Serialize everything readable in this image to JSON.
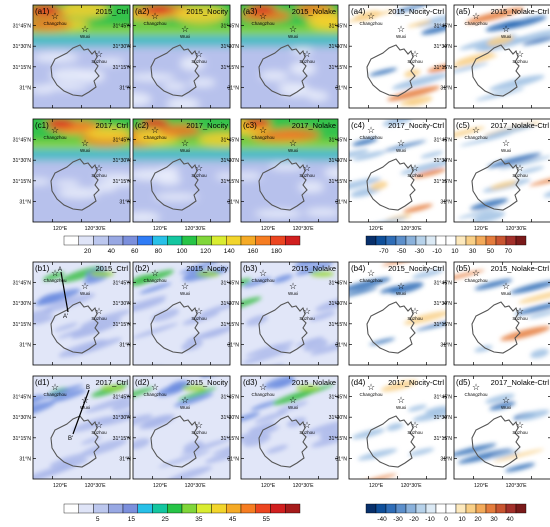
{
  "rows": [
    {
      "panels": [
        {
          "label": "(a1)",
          "title": "2015_Ctrl",
          "scheme": "abs_top"
        },
        {
          "label": "(a2)",
          "title": "2015_Nocity",
          "scheme": "abs_top"
        },
        {
          "label": "(a3)",
          "title": "2015_Nolake",
          "scheme": "abs_top"
        },
        {
          "label": "(a4)",
          "title": "2015_Nocity-Ctrl",
          "scheme": "diff"
        },
        {
          "label": "(a5)",
          "title": "2015_Nolake-Ctrl",
          "scheme": "diff"
        }
      ],
      "show_ylabels": true,
      "show_xlabels": false
    },
    {
      "panels": [
        {
          "label": "(c1)",
          "title": "2017_Ctrl",
          "scheme": "abs_top"
        },
        {
          "label": "(c2)",
          "title": "2017_Nocity",
          "scheme": "abs_top"
        },
        {
          "label": "(c3)",
          "title": "2017_Nolake",
          "scheme": "abs_top"
        },
        {
          "label": "(c4)",
          "title": "2017_Nocity-Ctrl",
          "scheme": "diff"
        },
        {
          "label": "(c5)",
          "title": "2017_Nolake-Ctrl",
          "scheme": "diff"
        }
      ],
      "show_ylabels": true,
      "show_xlabels": true
    },
    {
      "panels": [
        {
          "label": "(b1)",
          "title": "2015_Ctrl",
          "scheme": "abs_bottom",
          "section_line": {
            "start": "A",
            "end": "A'"
          }
        },
        {
          "label": "(b2)",
          "title": "2015_Nocity",
          "scheme": "abs_bottom"
        },
        {
          "label": "(b3)",
          "title": "2015_Nolake",
          "scheme": "abs_bottom"
        },
        {
          "label": "(b4)",
          "title": "2015_Nocity-Ctrl",
          "scheme": "diff_small"
        },
        {
          "label": "(b5)",
          "title": "2015_Nolake-Ctrl",
          "scheme": "diff_small"
        }
      ],
      "show_ylabels": true,
      "show_xlabels": false
    },
    {
      "panels": [
        {
          "label": "(d1)",
          "title": "2017_Ctrl",
          "scheme": "abs_bottom",
          "section_line": {
            "start": "B",
            "end": "B'"
          }
        },
        {
          "label": "(d2)",
          "title": "2015_Nocity",
          "scheme": "abs_bottom"
        },
        {
          "label": "(d3)",
          "title": "2015_Nolake",
          "scheme": "abs_bottom"
        },
        {
          "label": "(d4)",
          "title": "2017_Nocity-Ctrl",
          "scheme": "diff_small"
        },
        {
          "label": "(d5)",
          "title": "2017_Nolake-Ctrl",
          "scheme": "diff_small"
        }
      ],
      "show_ylabels": true,
      "show_xlabels": true
    }
  ],
  "cities": [
    "Changzhou",
    "Wuxi",
    "Suzhou"
  ],
  "y_tick_labels": [
    "31°45'N",
    "31°30'N",
    "31°15'N",
    "31°N"
  ],
  "x_tick_labels": [
    "120°E",
    "120°30'E"
  ],
  "colorbars": {
    "top_abs": {
      "labels": [
        "20",
        "40",
        "60",
        "80",
        "100",
        "120",
        "140",
        "160",
        "180"
      ],
      "colors": [
        "#ffffff",
        "#dfe4f7",
        "#bcc7ee",
        "#98a8e3",
        "#7b8fdc",
        "#2f7cf6",
        "#28c0e8",
        "#14c6a0",
        "#27c447",
        "#80d63a",
        "#d9ec31",
        "#f2d52c",
        "#f5aa26",
        "#f67d22",
        "#ec4520",
        "#d11f1f"
      ]
    },
    "top_diff": {
      "labels": [
        "-70",
        "-50",
        "-30",
        "-10",
        "10",
        "30",
        "50",
        "70"
      ],
      "colors": [
        "#08306b",
        "#0f4f9a",
        "#2f6db7",
        "#5c8fcb",
        "#8ab1db",
        "#b7d2ea",
        "#dceaf5",
        "#ffffff",
        "#ffffff",
        "#fde9bd",
        "#f9cf86",
        "#f3aa5a",
        "#e47c3d",
        "#c95531",
        "#a3302a",
        "#7a1a1a"
      ]
    },
    "bottom_abs": {
      "labels": [
        "5",
        "15",
        "25",
        "35",
        "45",
        "55"
      ],
      "colors": [
        "#ffffff",
        "#dfe4f7",
        "#bcc7ee",
        "#98a8e3",
        "#7b8fdc",
        "#28c0e8",
        "#14c6a0",
        "#27c447",
        "#80d63a",
        "#d9ec31",
        "#f2d52c",
        "#f5aa26",
        "#f67d22",
        "#ec4520",
        "#d11f1f",
        "#a61b1b"
      ]
    },
    "bottom_diff": {
      "labels": [
        "-40",
        "-30",
        "-20",
        "-10",
        "0",
        "10",
        "20",
        "30",
        "40"
      ],
      "colors": [
        "#08306b",
        "#0f4f9a",
        "#2f6db7",
        "#5c8fcb",
        "#8ab1db",
        "#b7d2ea",
        "#dceaf5",
        "#ffffff",
        "#ffffff",
        "#fde9bd",
        "#f9cf86",
        "#f3aa5a",
        "#e47c3d",
        "#c95531",
        "#a3302a",
        "#7a1a1a"
      ]
    }
  }
}
